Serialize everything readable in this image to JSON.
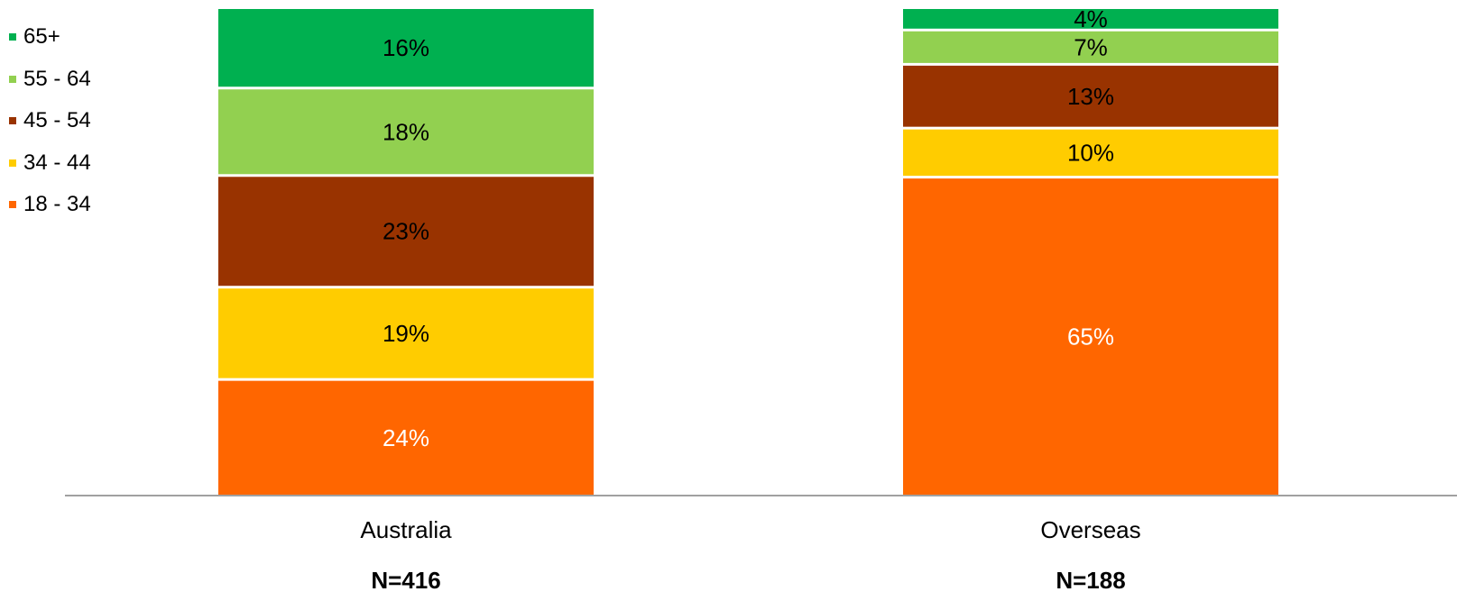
{
  "chart_data": {
    "type": "bar",
    "stacked": true,
    "categories": [
      "Australia",
      "Overseas"
    ],
    "category_notes": [
      "N=416",
      "N=188"
    ],
    "ylim": [
      0,
      100
    ],
    "legend_position": "top-left",
    "series": [
      {
        "name": "18 - 34",
        "values": [
          24,
          65
        ],
        "labels": [
          "24%",
          "65%"
        ],
        "color": "#FF6600",
        "label_color": "#FFFFFF"
      },
      {
        "name": "34 - 44",
        "values": [
          19,
          10
        ],
        "labels": [
          "19%",
          "10%"
        ],
        "color": "#FFCC00",
        "label_color": "#000000"
      },
      {
        "name": "45 - 54",
        "values": [
          23,
          13
        ],
        "labels": [
          "23%",
          "13%"
        ],
        "color": "#993300",
        "label_color": "#000000"
      },
      {
        "name": "55 - 64",
        "values": [
          18,
          7
        ],
        "labels": [
          "18%",
          "7%"
        ],
        "color": "#92D050",
        "label_color": "#000000"
      },
      {
        "name": "65+",
        "values": [
          16,
          4
        ],
        "labels": [
          "16%",
          "4%"
        ],
        "color": "#00B050",
        "label_color": "#000000"
      }
    ]
  }
}
